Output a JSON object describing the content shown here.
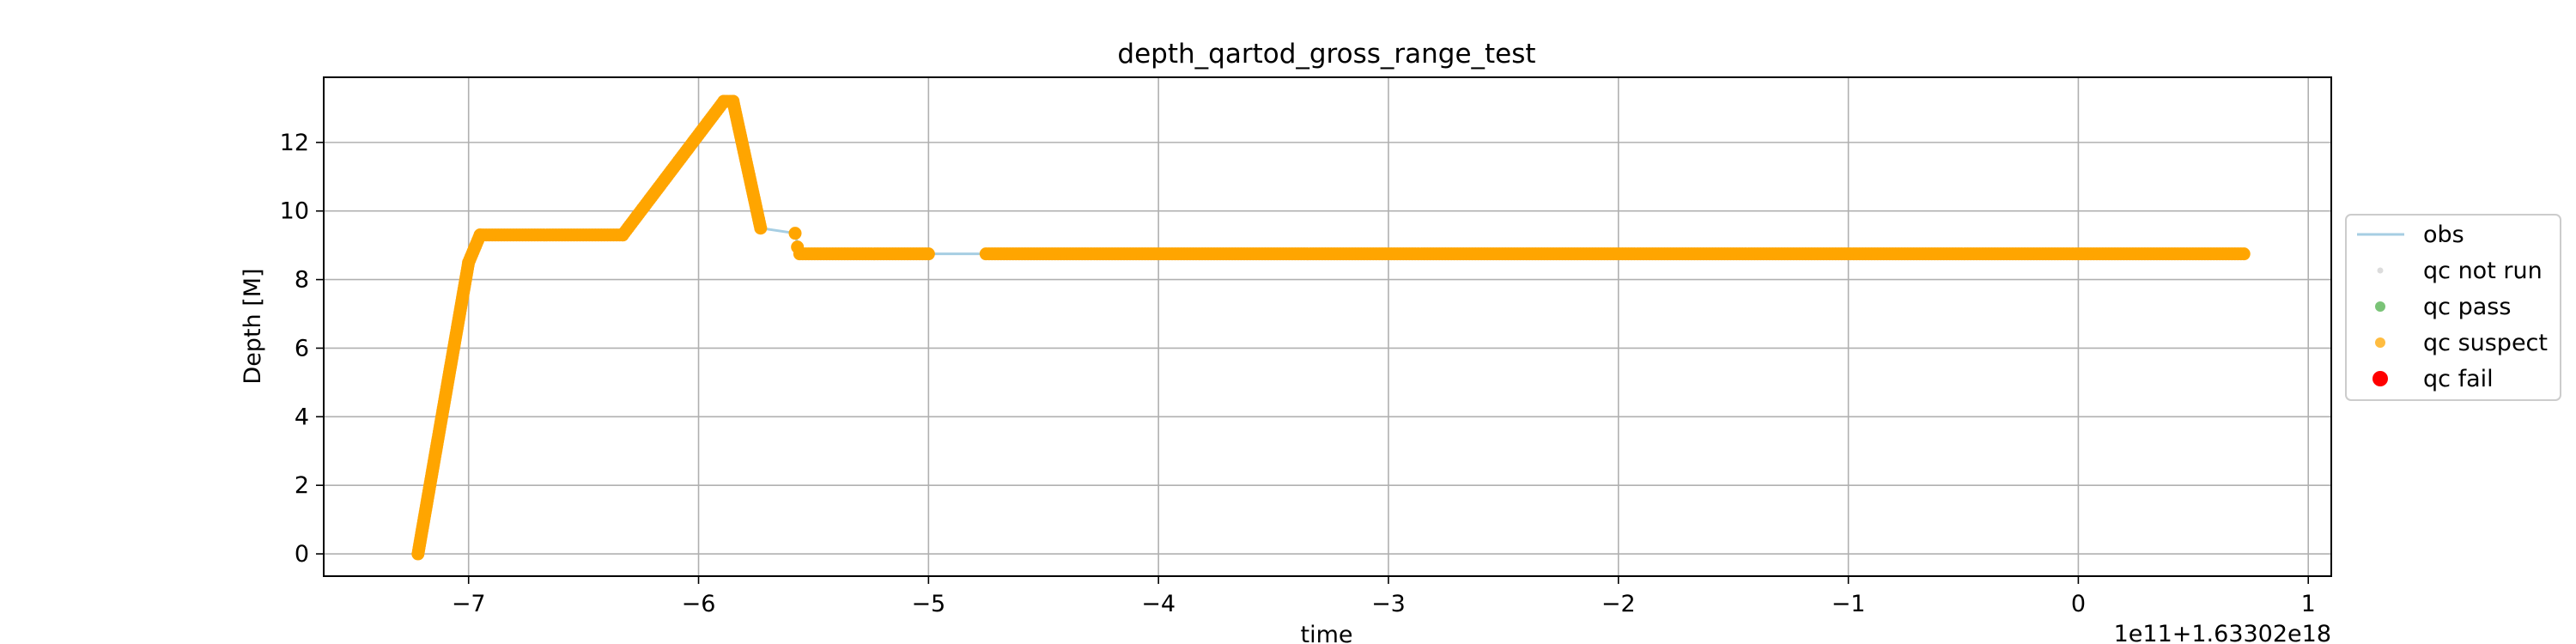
{
  "chart_data": {
    "type": "scatter",
    "title": "depth_qartod_gross_range_test",
    "xlabel": "time",
    "ylabel": "Depth [M]",
    "x_offset_label": "1e11+1.63302e18",
    "xlim": [
      -7.63,
      1.1
    ],
    "ylim": [
      -0.65,
      13.9
    ],
    "x_ticks": [
      -7,
      -6,
      -5,
      -4,
      -3,
      -2,
      -1,
      0,
      1
    ],
    "x_tick_labels": [
      "−7",
      "−6",
      "−5",
      "−4",
      "−3",
      "−2",
      "−1",
      "0",
      "1"
    ],
    "y_ticks": [
      0,
      2,
      4,
      6,
      8,
      10,
      12
    ],
    "y_tick_labels": [
      "0",
      "2",
      "4",
      "6",
      "8",
      "10",
      "12"
    ],
    "grid": true,
    "legend_position": "center-right-outside",
    "series": [
      {
        "name": "obs",
        "style": "line",
        "color": "#a6cee3",
        "x": [
          -7.22,
          -7.0,
          -6.95,
          -6.33,
          -5.89,
          -5.85,
          -5.73,
          -5.58,
          -5.56,
          -5.0,
          -4.75,
          0.72
        ],
        "y": [
          0.0,
          8.5,
          9.3,
          9.3,
          13.2,
          13.2,
          9.5,
          9.35,
          8.75,
          8.75,
          8.75,
          8.75
        ]
      },
      {
        "name": "qc not run",
        "style": "marker",
        "color": "#d3d3d3",
        "x": [],
        "y": []
      },
      {
        "name": "qc pass",
        "style": "marker",
        "color": "#4daf4a",
        "x": [],
        "y": []
      },
      {
        "name": "qc suspect",
        "style": "marker",
        "color": "#ffa500",
        "segments": [
          {
            "x_start": -7.22,
            "y_start": 0.0,
            "x_end": -7.0,
            "y_end": 8.5
          },
          {
            "x_start": -7.0,
            "y_start": 8.5,
            "x_end": -6.95,
            "y_end": 9.3
          },
          {
            "x_start": -6.95,
            "y_start": 9.3,
            "x_end": -6.33,
            "y_end": 9.3
          },
          {
            "x_start": -6.33,
            "y_start": 9.3,
            "x_end": -5.89,
            "y_end": 13.2
          },
          {
            "x_start": -5.89,
            "y_start": 13.2,
            "x_end": -5.85,
            "y_end": 13.2
          },
          {
            "x_start": -5.85,
            "y_start": 13.2,
            "x_end": -5.73,
            "y_end": 9.5
          },
          {
            "x_start": -5.56,
            "y_start": 8.75,
            "x_end": -5.0,
            "y_end": 8.75
          },
          {
            "x_start": -4.75,
            "y_start": 8.75,
            "x_end": 0.72,
            "y_end": 8.75
          }
        ],
        "points": [
          {
            "x": -5.58,
            "y": 9.35
          },
          {
            "x": -5.57,
            "y": 8.95
          }
        ]
      },
      {
        "name": "qc fail",
        "style": "marker",
        "color": "#ff0000",
        "x": [],
        "y": []
      }
    ]
  }
}
